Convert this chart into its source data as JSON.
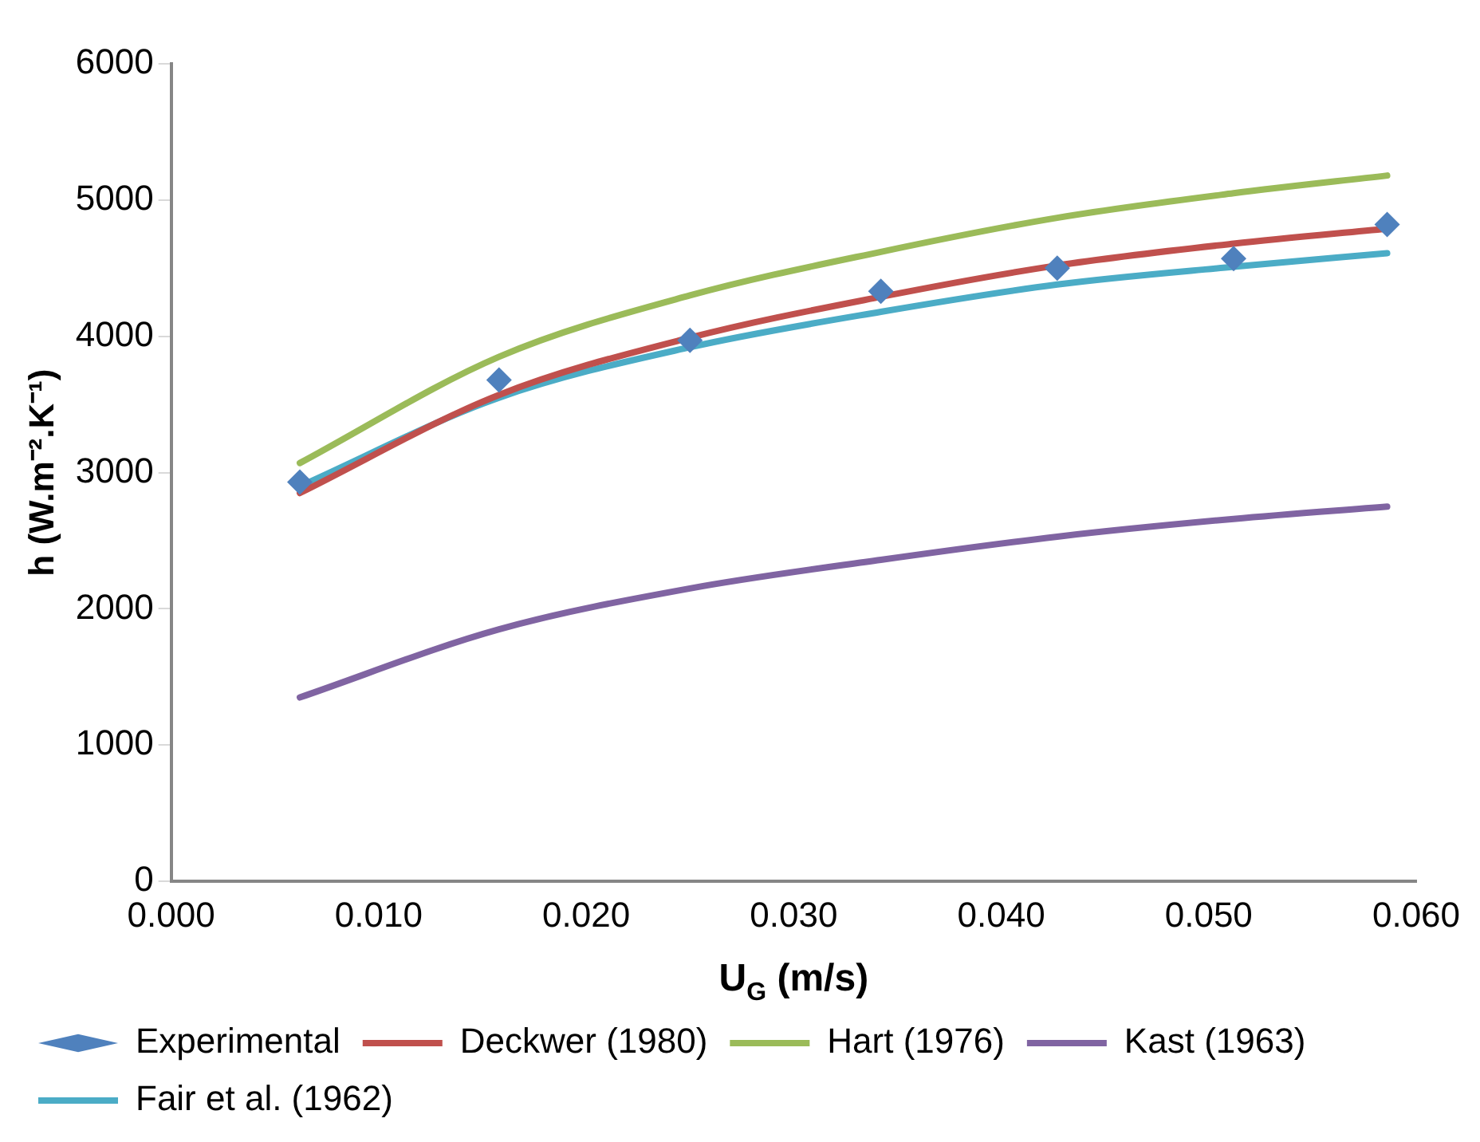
{
  "chart_data": {
    "type": "line",
    "xlabel": "U$_{G}$ (m/s)",
    "ylabel": "h (W.m⁻².K⁻¹)",
    "xlim": [
      0,
      0.06
    ],
    "xticks": [
      {
        "value": 0,
        "label": "0.000"
      },
      {
        "value": 0.01,
        "label": "0.010"
      },
      {
        "value": 0.02,
        "label": "0.020"
      },
      {
        "value": 0.03,
        "label": "0.030"
      },
      {
        "value": 0.04,
        "label": "0.040"
      },
      {
        "value": 0.05,
        "label": "0.050"
      },
      {
        "value": 0.06,
        "label": "0.060"
      }
    ],
    "ylim": [
      0,
      6000
    ],
    "yticks": [
      0,
      1000,
      2000,
      3000,
      4000,
      5000,
      6000
    ],
    "x": [
      0.0062,
      0.0158,
      0.025,
      0.0342,
      0.0427,
      0.0512,
      0.0586
    ],
    "series": [
      {
        "name": "Experimental",
        "type": "scatter",
        "marker": "diamond",
        "color": "#4f81bd",
        "values": [
          2930,
          3680,
          3970,
          4330,
          4500,
          4570,
          4820
        ]
      },
      {
        "name": "Deckwer (1980)",
        "color": "#c0504d",
        "values": [
          2850,
          3570,
          3990,
          4290,
          4520,
          4680,
          4790
        ]
      },
      {
        "name": "Hart (1976)",
        "color": "#9bbb59",
        "values": [
          3070,
          3850,
          4300,
          4620,
          4870,
          5050,
          5180
        ]
      },
      {
        "name": "Kast (1963)",
        "color": "#8064a2",
        "values": [
          1350,
          1850,
          2150,
          2360,
          2530,
          2660,
          2750
        ]
      },
      {
        "name": "Fair et al. (1962)",
        "color": "#4bacc6",
        "values": [
          2900,
          3550,
          3920,
          4180,
          4380,
          4510,
          4610
        ]
      }
    ],
    "legend": "bottom",
    "grid": false,
    "line_style": "solid"
  }
}
